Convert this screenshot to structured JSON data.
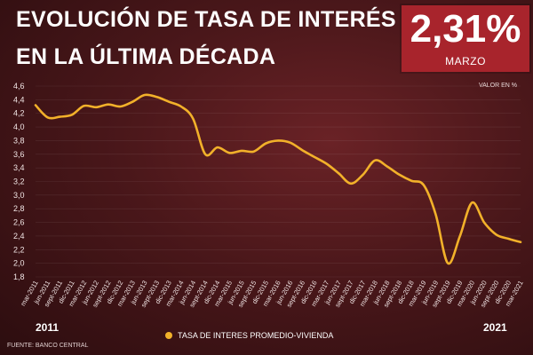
{
  "header": {
    "title_line1": "EVOLUCIÓN DE TASA DE INTERÉS",
    "title_line2": "EN LA ÚLTIMA DÉCADA"
  },
  "badge": {
    "value": "2,31%",
    "label": "MARZO"
  },
  "units_label": "VALOR EN %",
  "year_start": "2011",
  "year_end": "2021",
  "source": "FUENTE: BANCO CENTRAL",
  "colors": {
    "accent": "#f2b12a",
    "badge": "#a8242c"
  },
  "chart_data": {
    "type": "line",
    "title": "EVOLUCIÓN DE TASA DE INTERÉS EN LA ÚLTIMA DÉCADA",
    "ylabel": "VALOR EN %",
    "xlabel": "",
    "ylim": [
      1.8,
      4.6
    ],
    "y_ticks": [
      "4,6",
      "4,4",
      "4,2",
      "4,0",
      "3,8",
      "3,6",
      "3,4",
      "3,2",
      "3,0",
      "2,8",
      "2,6",
      "2,4",
      "2,2",
      "2,0",
      "1,8"
    ],
    "grid": true,
    "legend_position": "bottom",
    "categories": [
      "mar-2011",
      "jun-2011",
      "sept-2011",
      "dic-2011",
      "mar-2012",
      "jun-2012",
      "sept-2012",
      "dic-2012",
      "mar-2013",
      "jun-2013",
      "sept-2013",
      "dic-2013",
      "mar-2014",
      "jun-2014",
      "sept-2014",
      "dic-2014",
      "mar-2015",
      "jun-2015",
      "sept-2015",
      "dic-2015",
      "mar-2016",
      "jun-2016",
      "sept-2016",
      "dic-2016",
      "mar-2017",
      "jun-2017",
      "sept-2017",
      "dic-2017",
      "mar-2018",
      "jun-2018",
      "sept-2018",
      "dic-2018",
      "mar-2019",
      "jun-2019",
      "sept-2019",
      "dic-2019",
      "mar-2020",
      "jun-2020",
      "sept-2020",
      "dic-2020",
      "mar-2021"
    ],
    "series": [
      {
        "name": "TASA DE INTERES PROMEDIO-VIVIENDA",
        "values": [
          4.32,
          4.14,
          4.15,
          4.18,
          4.31,
          4.29,
          4.33,
          4.3,
          4.37,
          4.47,
          4.44,
          4.37,
          4.3,
          4.12,
          3.6,
          3.7,
          3.62,
          3.65,
          3.64,
          3.76,
          3.8,
          3.77,
          3.66,
          3.56,
          3.46,
          3.32,
          3.17,
          3.3,
          3.51,
          3.42,
          3.3,
          3.21,
          3.15,
          2.72,
          2.0,
          2.4,
          2.89,
          2.6,
          2.42,
          2.36,
          2.31
        ]
      }
    ]
  }
}
